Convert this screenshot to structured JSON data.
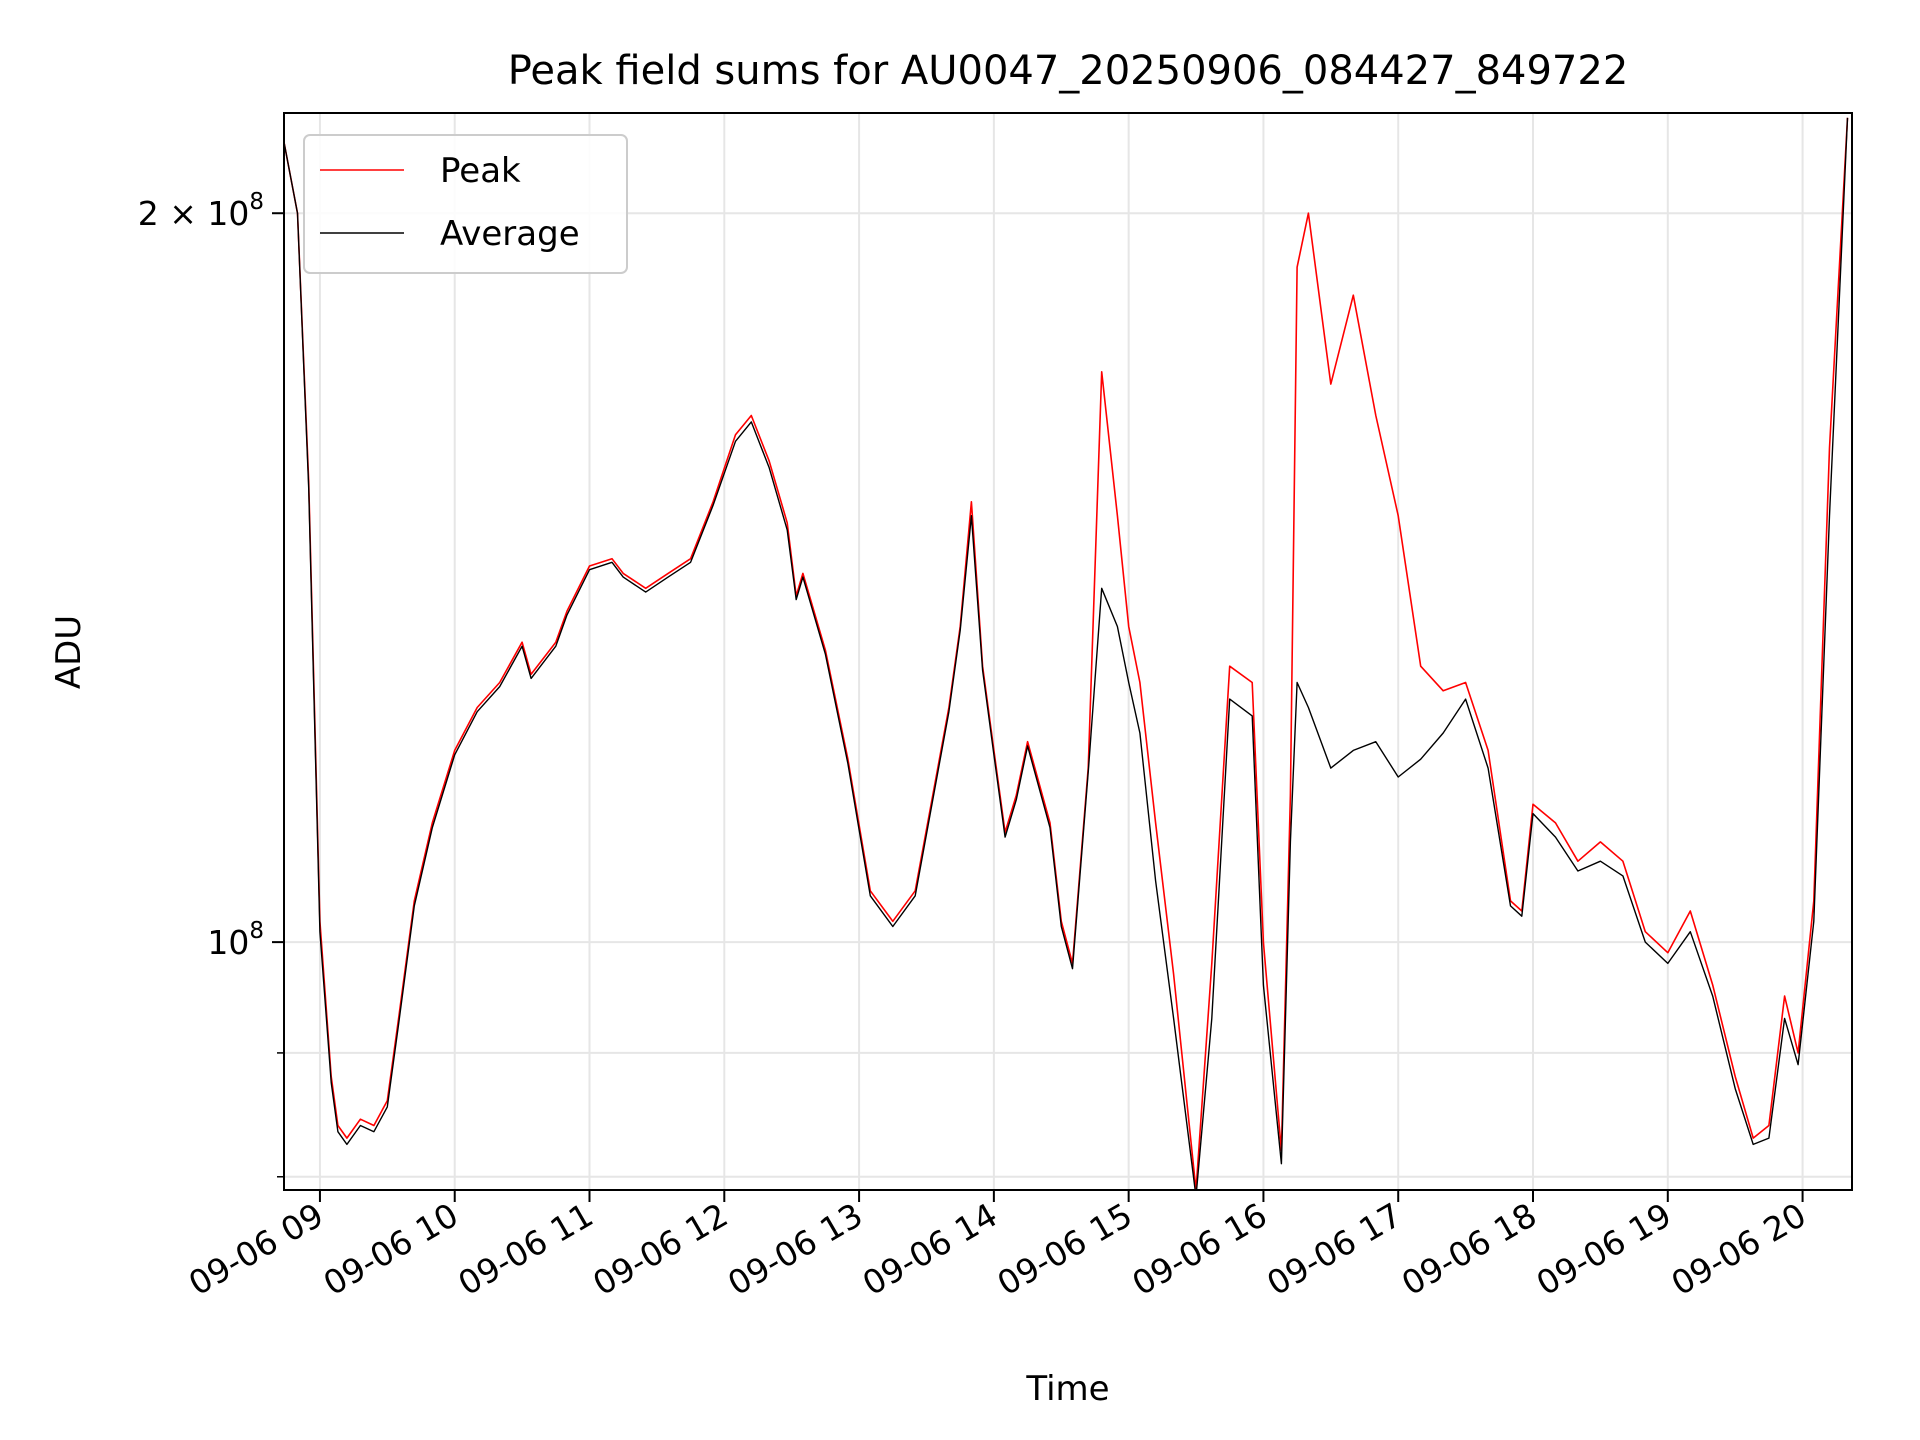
{
  "chart_data": {
    "type": "line",
    "title": "Peak field sums for AU0047_20250906_084427_849722",
    "xlabel": "Time",
    "ylabel": "ADU",
    "x_scale": "time",
    "y_scale": "log",
    "xlim": [
      "2025-09-06 08:44",
      "2025-09-06 20:22"
    ],
    "ylim": [
      79000000,
      220000000
    ],
    "grid": true,
    "legend_position": "top-left",
    "x_ticks": [
      "09-06 09",
      "09-06 10",
      "09-06 11",
      "09-06 12",
      "09-06 13",
      "09-06 14",
      "09-06 15",
      "09-06 16",
      "09-06 17",
      "09-06 18",
      "09-06 19",
      "09-06 20"
    ],
    "y_ticks": [
      {
        "value": 100000000,
        "base": "10",
        "exp": "8",
        "coef": ""
      },
      {
        "value": 200000000,
        "base": "10",
        "exp": "8",
        "coef": "2 × "
      }
    ],
    "y_minor_ticks": [
      80000000,
      90000000
    ],
    "series": [
      {
        "name": "Peak",
        "color": "#ff0000",
        "x": [
          "08:44",
          "08:50",
          "08:55",
          "09:00",
          "09:05",
          "09:08",
          "09:12",
          "09:18",
          "09:24",
          "09:30",
          "09:35",
          "09:42",
          "09:50",
          "10:00",
          "10:10",
          "10:20",
          "10:30",
          "10:34",
          "10:45",
          "10:50",
          "11:00",
          "11:10",
          "11:15",
          "11:25",
          "11:35",
          "11:45",
          "11:55",
          "12:05",
          "12:12",
          "12:20",
          "12:28",
          "12:32",
          "12:35",
          "12:45",
          "12:55",
          "13:05",
          "13:15",
          "13:25",
          "13:40",
          "13:45",
          "13:50",
          "13:55",
          "14:00",
          "14:05",
          "14:10",
          "14:15",
          "14:25",
          "14:30",
          "14:35",
          "14:42",
          "14:48",
          "14:55",
          "15:00",
          "15:05",
          "15:12",
          "15:20",
          "15:30",
          "15:37",
          "15:45",
          "15:55",
          "16:00",
          "16:08",
          "16:12",
          "16:15",
          "16:20",
          "16:30",
          "16:40",
          "16:50",
          "17:00",
          "17:10",
          "17:20",
          "17:30",
          "17:40",
          "17:50",
          "17:55",
          "18:00",
          "18:10",
          "18:20",
          "18:30",
          "18:40",
          "18:50",
          "19:00",
          "19:10",
          "19:20",
          "19:30",
          "19:38",
          "19:45",
          "19:52",
          "19:58",
          "20:05",
          "20:12",
          "20:20"
        ],
        "y": [
          214000000,
          200000000,
          155000000,
          102000000,
          88000000,
          84000000,
          83000000,
          84500000,
          84000000,
          86000000,
          93000000,
          104000000,
          112000000,
          120000000,
          125000000,
          128000000,
          133000000,
          129000000,
          133000000,
          137000000,
          143000000,
          144000000,
          142000000,
          140000000,
          142000000,
          144000000,
          152000000,
          162000000,
          165000000,
          158000000,
          149000000,
          139000000,
          142000000,
          132000000,
          119000000,
          105000000,
          102000000,
          105000000,
          125000000,
          135000000,
          152000000,
          130000000,
          120000000,
          111000000,
          115000000,
          121000000,
          112000000,
          102000000,
          98000000,
          118000000,
          172000000,
          150000000,
          135000000,
          128000000,
          112000000,
          97000000,
          79000000,
          98000000,
          130000000,
          128000000,
          100000000,
          82000000,
          115000000,
          190000000,
          200000000,
          170000000,
          185000000,
          165000000,
          150000000,
          130000000,
          127000000,
          128000000,
          120000000,
          104000000,
          103000000,
          114000000,
          112000000,
          108000000,
          110000000,
          108000000,
          101000000,
          99000000,
          103000000,
          96000000,
          88000000,
          83000000,
          84000000,
          95000000,
          90000000,
          104000000,
          160000000,
          219000000
        ]
      },
      {
        "name": "Average",
        "color": "#000000",
        "x": [
          "08:44",
          "08:50",
          "08:55",
          "09:00",
          "09:05",
          "09:08",
          "09:12",
          "09:18",
          "09:24",
          "09:30",
          "09:35",
          "09:42",
          "09:50",
          "10:00",
          "10:10",
          "10:20",
          "10:30",
          "10:34",
          "10:45",
          "10:50",
          "11:00",
          "11:10",
          "11:15",
          "11:25",
          "11:35",
          "11:45",
          "11:55",
          "12:05",
          "12:12",
          "12:20",
          "12:28",
          "12:32",
          "12:35",
          "12:45",
          "12:55",
          "13:05",
          "13:15",
          "13:25",
          "13:40",
          "13:45",
          "13:50",
          "13:55",
          "14:00",
          "14:05",
          "14:10",
          "14:15",
          "14:25",
          "14:30",
          "14:35",
          "14:42",
          "14:48",
          "14:55",
          "15:00",
          "15:05",
          "15:12",
          "15:20",
          "15:30",
          "15:37",
          "15:45",
          "15:55",
          "16:00",
          "16:08",
          "16:12",
          "16:15",
          "16:20",
          "16:30",
          "16:40",
          "16:50",
          "17:00",
          "17:10",
          "17:20",
          "17:30",
          "17:40",
          "17:50",
          "17:55",
          "18:00",
          "18:10",
          "18:20",
          "18:30",
          "18:40",
          "18:50",
          "19:00",
          "19:10",
          "19:20",
          "19:30",
          "19:38",
          "19:45",
          "19:52",
          "19:58",
          "20:05",
          "20:12",
          "20:20"
        ],
        "y": [
          214000000,
          200000000,
          154000000,
          101000000,
          87500000,
          83500000,
          82500000,
          84000000,
          83500000,
          85500000,
          92500000,
          103500000,
          111500000,
          119500000,
          124500000,
          127500000,
          132500000,
          128500000,
          132500000,
          136500000,
          142500000,
          143500000,
          141500000,
          139500000,
          141500000,
          143500000,
          151500000,
          161000000,
          164000000,
          157000000,
          148000000,
          138500000,
          141500000,
          131500000,
          118500000,
          104500000,
          101500000,
          104500000,
          124500000,
          134500000,
          150000000,
          129500000,
          119500000,
          110500000,
          114500000,
          120500000,
          111500000,
          101500000,
          97500000,
          117500000,
          140000000,
          135000000,
          128000000,
          122000000,
          106000000,
          93000000,
          78500000,
          93000000,
          126000000,
          124000000,
          96000000,
          81000000,
          110000000,
          128000000,
          125000000,
          118000000,
          120000000,
          121000000,
          117000000,
          119000000,
          122000000,
          126000000,
          118000000,
          103500000,
          102500000,
          113000000,
          110500000,
          107000000,
          108000000,
          106500000,
          100000000,
          98000000,
          101000000,
          95000000,
          87000000,
          82500000,
          83000000,
          93000000,
          89000000,
          102000000,
          150000000,
          219000000
        ]
      }
    ]
  }
}
